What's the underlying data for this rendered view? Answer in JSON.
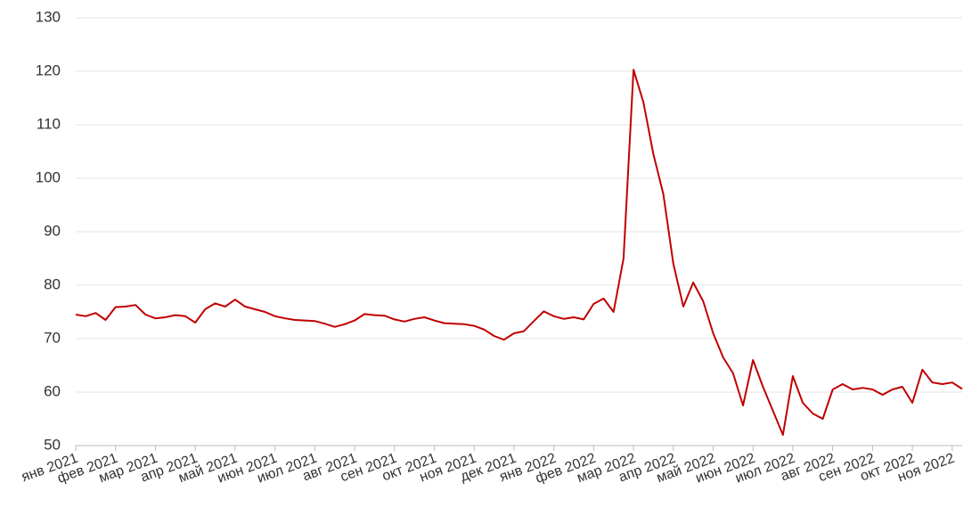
{
  "chart_data": {
    "type": "line",
    "categories": [
      "янв 2021",
      null,
      null,
      null,
      "фев 2021",
      null,
      null,
      null,
      "мар 2021",
      null,
      null,
      null,
      "апр 2021",
      null,
      null,
      null,
      "май 2021",
      null,
      null,
      null,
      "июн 2021",
      null,
      null,
      null,
      "июл 2021",
      null,
      null,
      null,
      "авг 2021",
      null,
      null,
      null,
      "сен 2021",
      null,
      null,
      null,
      "окт 2021",
      null,
      null,
      null,
      "ноя 2021",
      null,
      null,
      null,
      "дек 2021",
      null,
      null,
      null,
      "янв 2022",
      null,
      null,
      null,
      "фев 2022",
      null,
      null,
      null,
      "мар 2022",
      null,
      null,
      null,
      "апр 2022",
      null,
      null,
      null,
      "май 2022",
      null,
      null,
      null,
      "июн 2022",
      null,
      null,
      null,
      "июл 2022",
      null,
      null,
      null,
      "авг 2022",
      null,
      null,
      null,
      "сен 2022",
      null,
      null,
      null,
      "окт 2022",
      null,
      null,
      null,
      "ноя 2022",
      null
    ],
    "series": [
      {
        "color": "#c00000",
        "values": [
          74.5,
          74.2,
          74.8,
          73.5,
          75.9,
          76.0,
          76.3,
          74.5,
          73.8,
          74.0,
          74.4,
          74.2,
          73.0,
          75.5,
          76.6,
          76.0,
          77.3,
          76.0,
          75.5,
          75.0,
          74.2,
          73.8,
          73.5,
          73.4,
          73.3,
          72.8,
          72.2,
          72.7,
          73.4,
          74.6,
          74.4,
          74.3,
          73.6,
          73.2,
          73.7,
          74.0,
          73.4,
          72.9,
          72.8,
          72.7,
          72.4,
          71.7,
          70.5,
          69.8,
          71.0,
          71.4,
          73.3,
          75.1,
          74.2,
          73.7,
          74.0,
          73.6,
          76.5,
          77.5,
          75.0,
          85.0,
          120.3,
          114.2,
          104.5,
          97.0,
          84.0,
          76.0,
          80.5,
          77.0,
          71.0,
          66.5,
          63.5,
          57.5,
          66.0,
          61.0,
          56.5,
          52.0,
          63.0,
          58.0,
          56.0,
          55.0,
          60.5,
          61.5,
          60.5,
          60.8,
          60.5,
          59.5,
          60.5,
          61.0,
          58.0,
          64.2,
          61.8,
          61.5,
          61.8,
          60.6
        ]
      }
    ],
    "ylim": [
      50,
      130
    ],
    "yticks": [
      50,
      60,
      70,
      80,
      90,
      100,
      110,
      120,
      130
    ],
    "grid": true
  }
}
